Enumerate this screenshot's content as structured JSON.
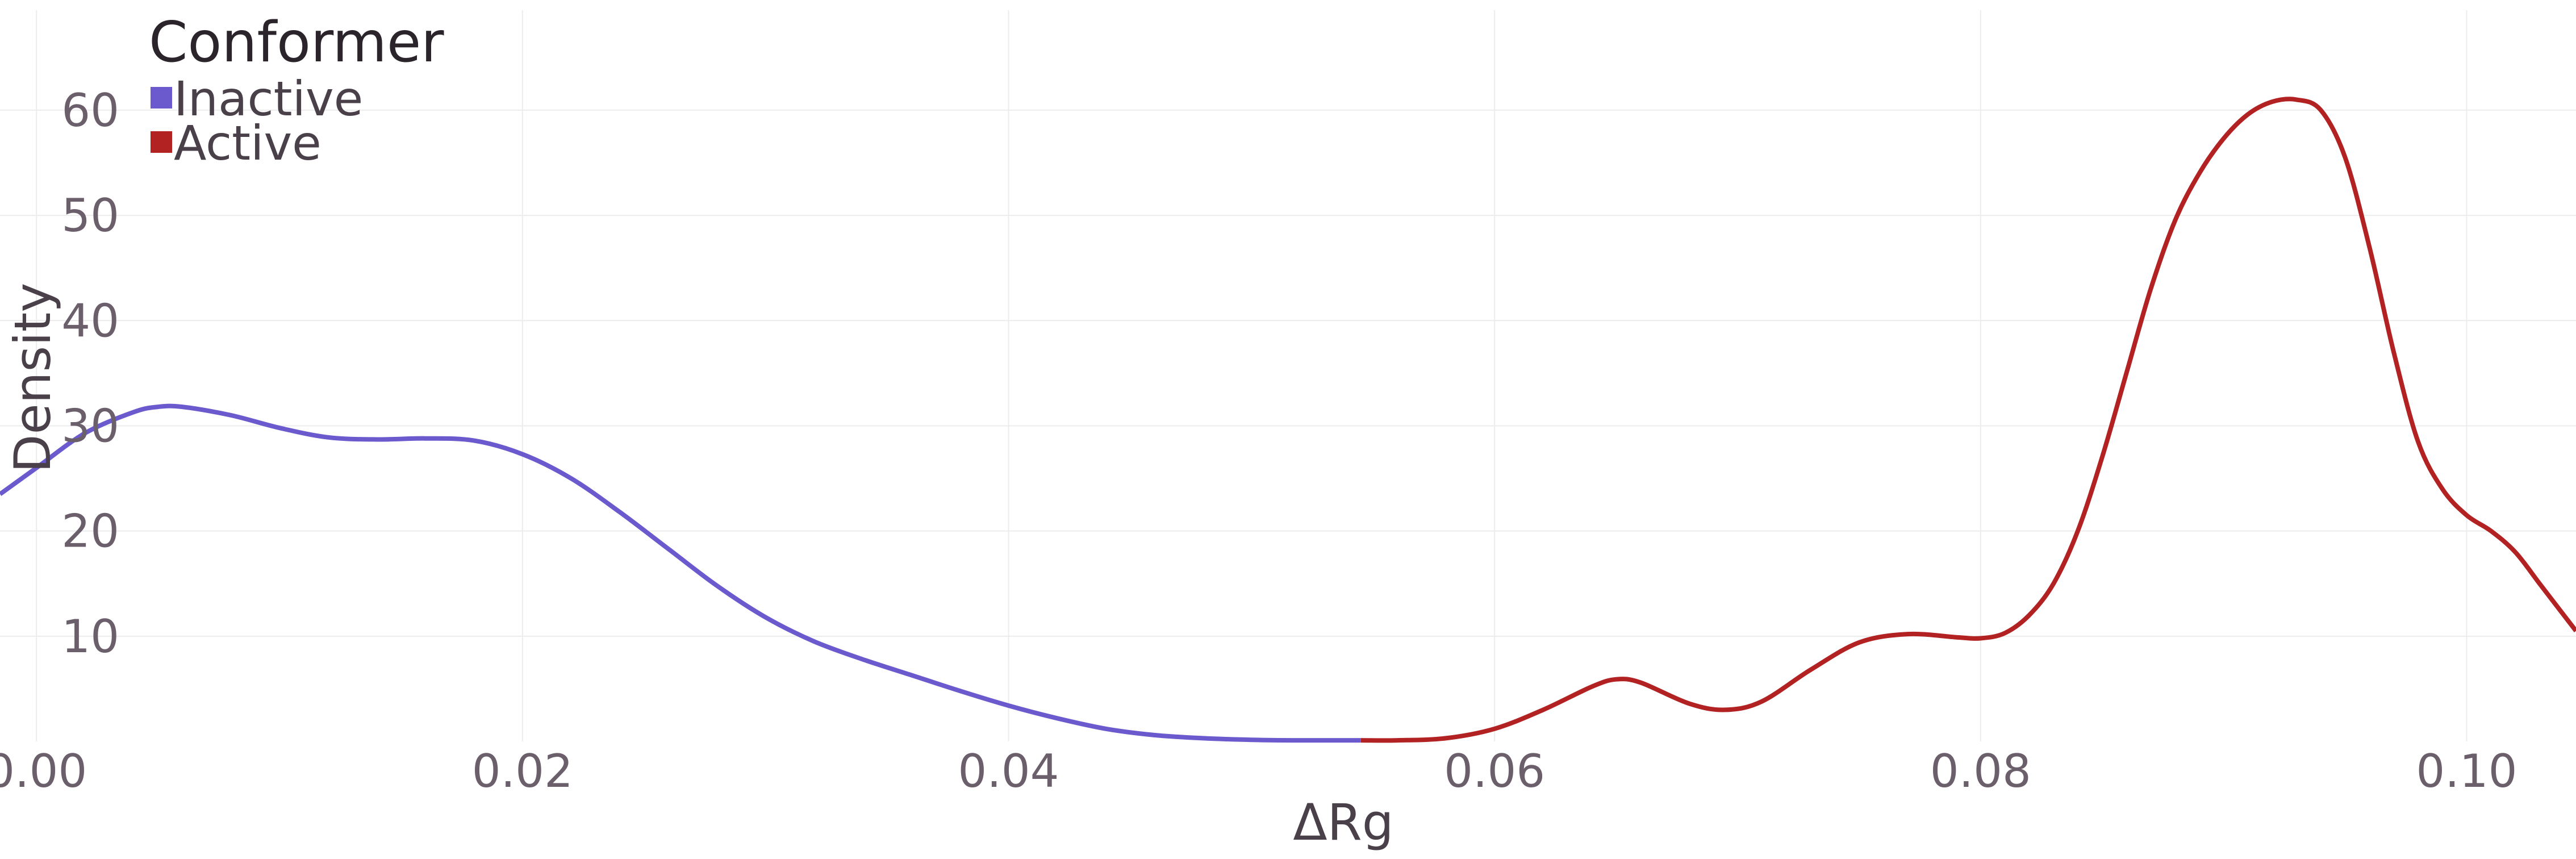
{
  "chart_data": {
    "type": "line",
    "title": "",
    "xlabel": "ΔRg",
    "ylabel": "Density",
    "xlim": [
      -0.0015,
      0.1045
    ],
    "ylim": [
      0,
      69.5
    ],
    "x_ticks": [
      0.0,
      0.02,
      0.04,
      0.06,
      0.08,
      0.1
    ],
    "x_tick_labels": [
      "0.00",
      "0.02",
      "0.04",
      "0.06",
      "0.08",
      "0.10"
    ],
    "y_ticks": [
      10,
      20,
      30,
      40,
      50,
      60
    ],
    "y_tick_labels": [
      "10",
      "20",
      "30",
      "40",
      "50",
      "60"
    ],
    "grid": true,
    "legend": {
      "title": "Conformer",
      "placement": "top-left"
    },
    "series": [
      {
        "name": "Inactive",
        "color": "#6a5acd",
        "points": [
          [
            -0.0015,
            23.5
          ],
          [
            0.0,
            26.0
          ],
          [
            0.002,
            29.3
          ],
          [
            0.004,
            31.3
          ],
          [
            0.005,
            31.8
          ],
          [
            0.006,
            31.8
          ],
          [
            0.008,
            31.0
          ],
          [
            0.01,
            29.8
          ],
          [
            0.012,
            28.9
          ],
          [
            0.014,
            28.7
          ],
          [
            0.016,
            28.8
          ],
          [
            0.018,
            28.6
          ],
          [
            0.02,
            27.3
          ],
          [
            0.022,
            25.0
          ],
          [
            0.024,
            21.8
          ],
          [
            0.026,
            18.3
          ],
          [
            0.028,
            14.8
          ],
          [
            0.03,
            11.8
          ],
          [
            0.032,
            9.5
          ],
          [
            0.034,
            7.8
          ],
          [
            0.036,
            6.3
          ],
          [
            0.038,
            4.8
          ],
          [
            0.04,
            3.4
          ],
          [
            0.042,
            2.2
          ],
          [
            0.044,
            1.2
          ],
          [
            0.046,
            0.6
          ],
          [
            0.048,
            0.3
          ],
          [
            0.05,
            0.15
          ],
          [
            0.052,
            0.1
          ],
          [
            0.0545,
            0.1
          ]
        ]
      },
      {
        "name": "Active",
        "color": "#b22222",
        "points": [
          [
            0.0545,
            0.1
          ],
          [
            0.056,
            0.1
          ],
          [
            0.058,
            0.3
          ],
          [
            0.06,
            1.2
          ],
          [
            0.062,
            3.0
          ],
          [
            0.064,
            5.2
          ],
          [
            0.065,
            5.9
          ],
          [
            0.066,
            5.6
          ],
          [
            0.068,
            3.6
          ],
          [
            0.0695,
            3.0
          ],
          [
            0.071,
            3.8
          ],
          [
            0.073,
            6.8
          ],
          [
            0.075,
            9.4
          ],
          [
            0.077,
            10.2
          ],
          [
            0.079,
            9.9
          ],
          [
            0.08,
            9.8
          ],
          [
            0.081,
            10.3
          ],
          [
            0.082,
            12.0
          ],
          [
            0.083,
            15.0
          ],
          [
            0.084,
            20.0
          ],
          [
            0.085,
            27.0
          ],
          [
            0.086,
            35.0
          ],
          [
            0.087,
            43.0
          ],
          [
            0.088,
            49.5
          ],
          [
            0.089,
            54.0
          ],
          [
            0.09,
            57.3
          ],
          [
            0.091,
            59.6
          ],
          [
            0.092,
            60.8
          ],
          [
            0.093,
            61.0
          ],
          [
            0.094,
            60.0
          ],
          [
            0.095,
            55.5
          ],
          [
            0.096,
            47.0
          ],
          [
            0.097,
            37.0
          ],
          [
            0.098,
            28.5
          ],
          [
            0.099,
            24.0
          ],
          [
            0.1,
            21.5
          ],
          [
            0.101,
            20.0
          ],
          [
            0.102,
            18.0
          ],
          [
            0.103,
            15.0
          ],
          [
            0.104,
            12.0
          ],
          [
            0.1045,
            10.5
          ]
        ]
      }
    ]
  }
}
